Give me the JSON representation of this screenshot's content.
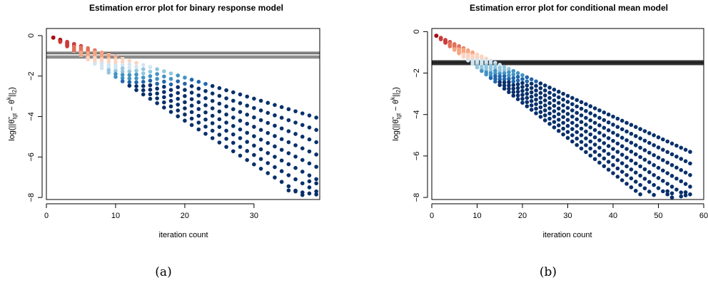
{
  "chart_data": [
    {
      "type": "scatter",
      "panel_label": "(a)",
      "title": "Estimation error plot for binary response model",
      "xlabel": "iteration count",
      "ylabel": "log(||θ̃tgt − θk||2)",
      "ylabel_parts": {
        "base": "log(||",
        "theta_tilde": "θ̃",
        "tgt": "tgt",
        "minus": " − ",
        "theta": "θ",
        "k": "k",
        "close": "||",
        "two": "2",
        "end": ")"
      },
      "xlim": [
        0,
        39.5
      ],
      "ylim": [
        -8.1,
        0.35
      ],
      "x_ticks": [
        "0",
        "10",
        "20",
        "30"
      ],
      "x_tick_values": [
        0,
        10,
        20,
        30
      ],
      "y_ticks": [
        "0",
        "−2",
        "−4",
        "−6",
        "−8"
      ],
      "y_tick_values": [
        0,
        -2,
        -4,
        -6,
        -8
      ],
      "hlines": [
        -0.82,
        -0.9,
        -1.02,
        -1.1
      ],
      "grid": false,
      "legend": "none",
      "n_iter": 39,
      "n_series": 8,
      "series_start": -0.1,
      "series_slopes": [
        0.104,
        0.12,
        0.136,
        0.152,
        0.168,
        0.184,
        0.2,
        0.216
      ],
      "points": [
        {
          "x": 35,
          "y": -7.65
        },
        {
          "x": 36,
          "y": -7.7
        },
        {
          "x": 37,
          "y": -7.75
        },
        {
          "x": 38,
          "y": -7.8
        },
        {
          "x": 39,
          "y": -7.85
        },
        {
          "x": 38,
          "y": -7.2
        },
        {
          "x": 39,
          "y": -7.3
        }
      ]
    },
    {
      "type": "scatter",
      "panel_label": "(b)",
      "title": "Estimation error plot for conditional mean model",
      "xlabel": "iteration count",
      "ylabel": "log(||θ̃tgt − θk||2)",
      "ylabel_parts": {
        "base": "log(||",
        "theta_tilde": "θ̃",
        "tgt": "tgt",
        "minus": " − ",
        "theta": "θ",
        "k": "k",
        "close": "||",
        "two": "2",
        "end": ")"
      },
      "xlim": [
        0,
        60
      ],
      "ylim": [
        -8.1,
        0.15
      ],
      "x_ticks": [
        "0",
        "10",
        "20",
        "30",
        "40",
        "50",
        "60"
      ],
      "x_tick_values": [
        0,
        10,
        20,
        30,
        40,
        50,
        60
      ],
      "y_ticks": [
        "0",
        "−2",
        "−4",
        "−6",
        "−8"
      ],
      "y_tick_values": [
        0,
        -2,
        -4,
        -6,
        -8
      ],
      "hlines": [
        -1.4,
        -1.44,
        -1.48,
        -1.52,
        -1.56,
        -1.6
      ],
      "grid": false,
      "legend": "none",
      "n_iter": 57,
      "n_series": 8,
      "series_start": -0.2,
      "series_slopes": [
        0.1,
        0.11,
        0.12,
        0.13,
        0.14,
        0.15,
        0.16,
        0.17
      ],
      "points": [
        {
          "x": 52,
          "y": -7.7
        },
        {
          "x": 53,
          "y": -7.8
        },
        {
          "x": 55,
          "y": -7.95
        },
        {
          "x": 56,
          "y": -7.75
        },
        {
          "x": 57,
          "y": -7.85
        }
      ]
    }
  ],
  "colors": {
    "ramp": [
      "#a50f15",
      "#cb3b3b",
      "#e2705a",
      "#f4a582",
      "#fbd3bf",
      "#d1e5f0",
      "#92c5de",
      "#4393c3",
      "#2166ac",
      "#08306b"
    ],
    "axis": "#000000",
    "hline": "#000000"
  }
}
